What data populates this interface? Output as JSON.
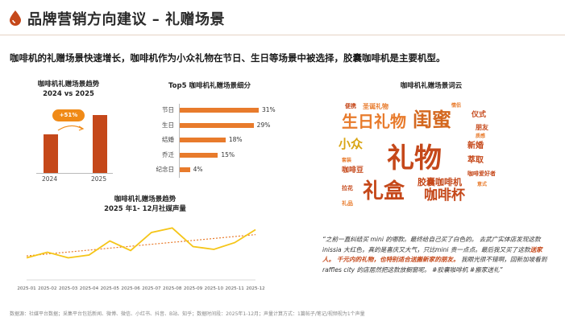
{
  "header": {
    "title": "品牌营销方向建议 – 礼赠场景",
    "logo_icon": "drop-icon",
    "accent": "#c5481a"
  },
  "subtitle": "咖啡机的礼赠场景快速增长，咖啡机作为小众礼物在节日、生日等场景中被选择，胶囊咖啡机是主要机型。",
  "kpi": {
    "title_line1": "咖啡机礼赠场景趋势",
    "title_line2": "2024 vs 2025",
    "badge": "+51%",
    "chart_data": {
      "type": "bar",
      "categories": [
        "2024",
        "2025"
      ],
      "values": [
        100,
        151
      ]
    }
  },
  "top5": {
    "title": "Top5 咖啡机礼赠场景细分",
    "chart_data": {
      "type": "bar",
      "orientation": "horizontal",
      "categories": [
        "节日",
        "生日",
        "结婚",
        "乔迁",
        "纪念日"
      ],
      "values": [
        31,
        29,
        18,
        15,
        4
      ],
      "labels": [
        "31%",
        "29%",
        "18%",
        "15%",
        "4%"
      ]
    }
  },
  "trend": {
    "title_line1": "咖啡机礼赠场景趋势",
    "title_line2": "2025 年1- 12月社媒声量",
    "chart_data": {
      "type": "line",
      "x": [
        "2025-01",
        "2025-02",
        "2025-03",
        "2025-04",
        "2025-05",
        "2025-06",
        "2025-07",
        "2025-08",
        "2025-09",
        "2025-10",
        "2025-11",
        "2025-12"
      ],
      "series": [
        {
          "values": [
            35,
            45,
            35,
            40,
            65,
            48,
            80,
            88,
            55,
            50,
            62,
            85
          ]
        }
      ],
      "trendline": true,
      "ylim": [
        0,
        100
      ],
      "line_color": "#f5c518",
      "trend_color": "#e87b2c"
    }
  },
  "cloud": {
    "title": "咖啡机礼赠场景词云",
    "words": [
      {
        "text": "礼物",
        "size": 34,
        "color": "#c5481a",
        "x": 70,
        "y": 55
      },
      {
        "text": "礼盒",
        "size": 26,
        "color": "#c5481a",
        "x": 40,
        "y": 100
      },
      {
        "text": "闺蜜",
        "size": 24,
        "color": "#d4681f",
        "x": 102,
        "y": 12
      },
      {
        "text": "生日礼物",
        "size": 20,
        "color": "#e87b2c",
        "x": 14,
        "y": 16
      },
      {
        "text": "咖啡杯",
        "size": 17,
        "color": "#c5481a",
        "x": 116,
        "y": 110
      },
      {
        "text": "小众",
        "size": 15,
        "color": "#d9a514",
        "x": 10,
        "y": 47
      },
      {
        "text": "胶囊咖啡机",
        "size": 11,
        "color": "#c5481a",
        "x": 108,
        "y": 96
      },
      {
        "text": "新婚",
        "size": 10,
        "color": "#c5481a",
        "x": 170,
        "y": 52
      },
      {
        "text": "萃取",
        "size": 10,
        "color": "#c5481a",
        "x": 170,
        "y": 70
      },
      {
        "text": "仪式",
        "size": 9,
        "color": "#c5481a",
        "x": 175,
        "y": 14
      },
      {
        "text": "朋友",
        "size": 8,
        "color": "#c5481a",
        "x": 180,
        "y": 30
      },
      {
        "text": "咖啡豆",
        "size": 9,
        "color": "#c5481a",
        "x": 14,
        "y": 83
      },
      {
        "text": "圣诞礼物",
        "size": 8,
        "color": "#e87b2c",
        "x": 40,
        "y": 4
      },
      {
        "text": "便携",
        "size": 7,
        "color": "#c5481a",
        "x": 18,
        "y": 4
      },
      {
        "text": "拉花",
        "size": 7,
        "color": "#c5481a",
        "x": 14,
        "y": 106
      },
      {
        "text": "礼品",
        "size": 7,
        "color": "#e87b2c",
        "x": 14,
        "y": 125
      },
      {
        "text": "咖啡爱好者",
        "size": 7,
        "color": "#c5481a",
        "x": 170,
        "y": 88
      },
      {
        "text": "质感",
        "size": 6,
        "color": "#e87b2c",
        "x": 180,
        "y": 42
      },
      {
        "text": "套装",
        "size": 6,
        "color": "#e87b2c",
        "x": 14,
        "y": 72
      },
      {
        "text": "意式",
        "size": 6,
        "color": "#e87b2c",
        "x": 182,
        "y": 102
      },
      {
        "text": "情侣",
        "size": 6,
        "color": "#e87b2c",
        "x": 150,
        "y": 4
      }
    ]
  },
  "quote": {
    "part1": "“之前一直纠结买 mini 的哪款。最终给自己买了白色的。 去武广实体店发现这款inissia 大红色，真的是喜庆又大气，只比mini 贵一点点。最后我又买了这款",
    "highlight": "送家人。 千元内的礼物，也特别适合送搬新家的朋友。",
    "part2": " 我眼光很不错啊，回新加坡看到 raffles city 的店居然把这款放橱窗呢。 #胶囊咖啡机 #搬家送礼”"
  },
  "footer": "数据源：社媒平台数据；采集平台包括新闻、微博、微信、小红书、抖音、B站、知乎；数据时间段：2025年1-12月；声量计算方式：1篇帖子/笔记/视频视为1个声量"
}
